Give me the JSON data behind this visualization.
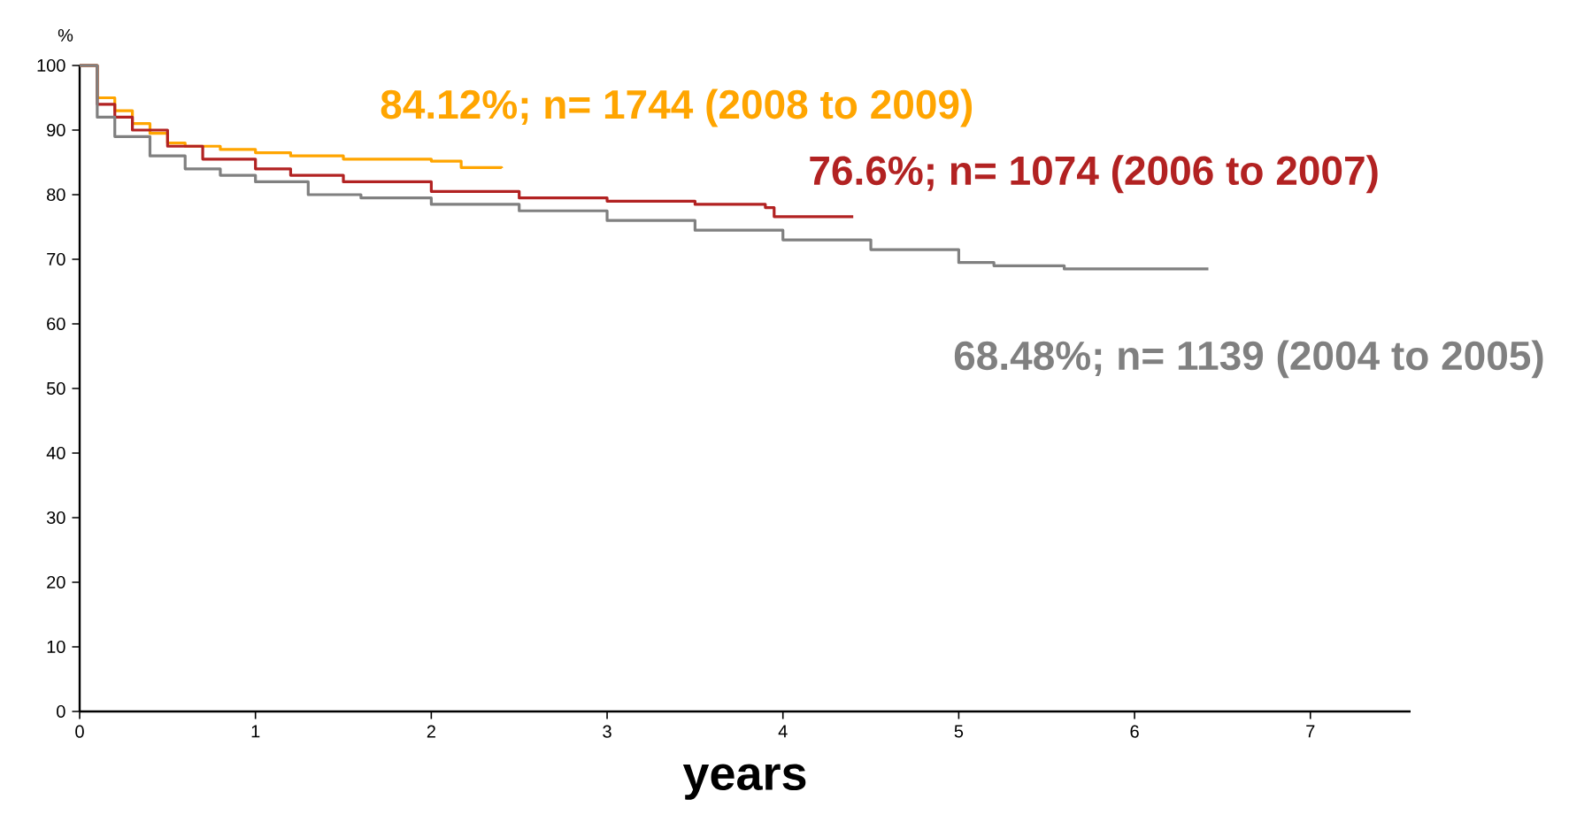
{
  "chart_data": {
    "type": "step",
    "xlabel": "years",
    "ylabel": "%",
    "xlim": [
      0,
      7.57
    ],
    "ylim": [
      0,
      100
    ],
    "xticks": [
      0,
      1,
      2,
      3,
      4,
      5,
      6,
      7
    ],
    "yticks": [
      0,
      10,
      20,
      30,
      40,
      50,
      60,
      70,
      80,
      90,
      100
    ],
    "grid": false,
    "series": [
      {
        "name": "84.12%; n= 1744 (2008 to 2009)",
        "color": "#ffa500",
        "x": [
          0,
          0.1,
          0.2,
          0.3,
          0.4,
          0.5,
          0.6,
          0.8,
          1.0,
          1.2,
          1.5,
          2.0,
          2.17,
          2.17,
          2.4
        ],
        "values": [
          100,
          95,
          93,
          91,
          89.5,
          88,
          87.5,
          87,
          86.5,
          86,
          85.5,
          85.2,
          84.8,
          84.2,
          84.1
        ]
      },
      {
        "name": "76.6%; n= 1074 (2006 to 2007)",
        "color": "#b22222",
        "x": [
          0,
          0.1,
          0.2,
          0.3,
          0.5,
          0.7,
          1.0,
          1.2,
          1.5,
          2.0,
          2.5,
          3.0,
          3.5,
          3.9,
          3.95,
          4.4
        ],
        "values": [
          100,
          94,
          92,
          90,
          87.5,
          85.5,
          84,
          83,
          82,
          80.5,
          79.5,
          79,
          78.5,
          78,
          76.6,
          76.6
        ]
      },
      {
        "name": "68.48%; n= 1139 (2004 to 2005)",
        "color": "#808080",
        "x": [
          0,
          0.1,
          0.2,
          0.4,
          0.6,
          0.8,
          1.0,
          1.3,
          1.6,
          2.0,
          2.5,
          3.0,
          3.5,
          4.0,
          4.5,
          5.0,
          5.2,
          5.6,
          6.42
        ],
        "values": [
          100,
          92,
          89,
          86,
          84,
          83,
          82,
          80,
          79.5,
          78.5,
          77.5,
          76,
          74.5,
          73,
          71.5,
          69.5,
          69,
          68.5,
          68.5
        ]
      }
    ]
  }
}
